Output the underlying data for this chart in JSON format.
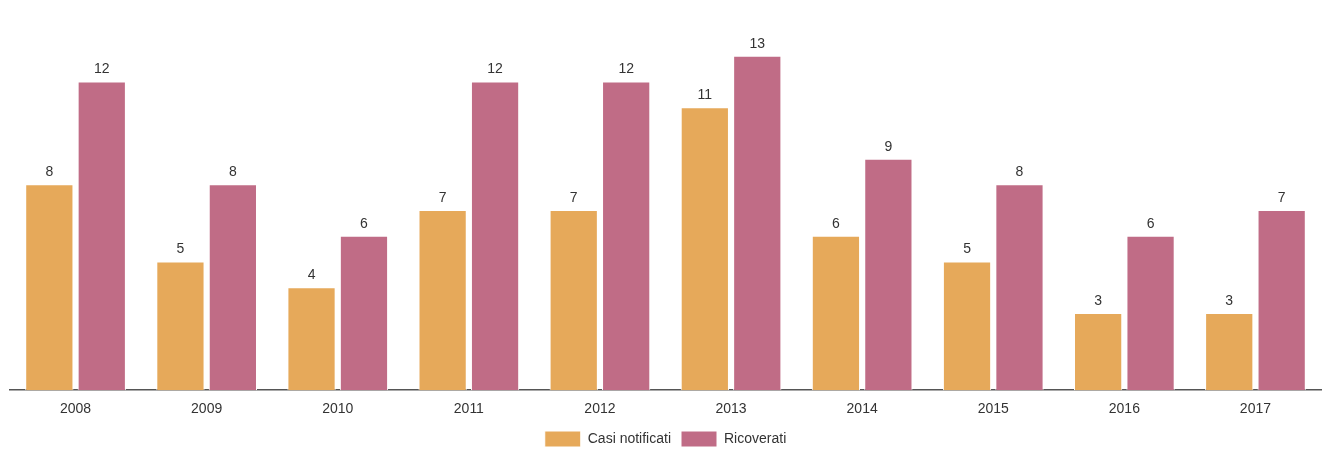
{
  "chart_data": {
    "type": "bar",
    "categories": [
      "2008",
      "2009",
      "2010",
      "2011",
      "2012",
      "2013",
      "2014",
      "2015",
      "2016",
      "2017"
    ],
    "series": [
      {
        "name": "Casi notificati",
        "color": "#e6a95a",
        "values": [
          8,
          5,
          4,
          7,
          7,
          11,
          6,
          5,
          3,
          3
        ]
      },
      {
        "name": "Ricoverati",
        "color": "#c06c86",
        "values": [
          12,
          8,
          6,
          12,
          12,
          13,
          9,
          8,
          6,
          7
        ]
      }
    ],
    "data_labels": true,
    "legend": "bottom"
  }
}
